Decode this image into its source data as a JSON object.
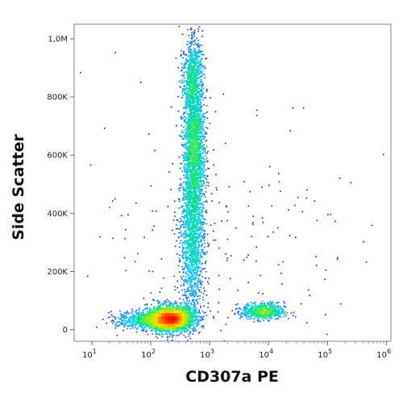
{
  "chart_data": {
    "type": "scatter",
    "subtype": "flow-cytometry-density-dot-plot",
    "xlabel": "CD307a PE",
    "ylabel": "Side Scatter",
    "x_scale": "log",
    "xlim": [
      5,
      1200000
    ],
    "ylim": [
      -40000,
      1050000
    ],
    "x_ticks": [
      {
        "value": 10,
        "base": "10",
        "exp": "1"
      },
      {
        "value": 100,
        "base": "10",
        "exp": "2"
      },
      {
        "value": 1000,
        "base": "10",
        "exp": "3"
      },
      {
        "value": 10000,
        "base": "10",
        "exp": "4"
      },
      {
        "value": 100000,
        "base": "10",
        "exp": "5"
      },
      {
        "value": 1000000,
        "base": "10",
        "exp": "6"
      }
    ],
    "y_ticks": [
      {
        "value": 0,
        "label": "0"
      },
      {
        "value": 200000,
        "label": "200K"
      },
      {
        "value": 400000,
        "label": "400K"
      },
      {
        "value": 600000,
        "label": "600K"
      },
      {
        "value": 800000,
        "label": "800K"
      },
      {
        "value": 1000000,
        "label": "1,0M"
      }
    ],
    "grid": false,
    "legend": "none",
    "color_scale": [
      "#0000d0",
      "#0060ff",
      "#00c8ff",
      "#00e090",
      "#a0f000",
      "#ffe000",
      "#ff8000",
      "#ff0000"
    ],
    "populations": [
      {
        "x_center": 220,
        "y_center": 40000,
        "x_spread_log": 0.2,
        "y_spread": 22000,
        "count": 2600,
        "density": "high"
      },
      {
        "x_center": 100,
        "y_center": 35000,
        "x_spread_log": 0.28,
        "y_spread": 16000,
        "count": 900,
        "density": "medium"
      },
      {
        "x_center": 530,
        "y_center": 620000,
        "x_spread_log": 0.09,
        "y_spread": 150000,
        "count": 2600,
        "density": "high"
      },
      {
        "x_center": 500,
        "y_center": 300000,
        "x_spread_log": 0.1,
        "y_spread": 120000,
        "count": 1300,
        "density": "medium"
      },
      {
        "x_center": 500,
        "y_center": 880000,
        "x_spread_log": 0.08,
        "y_spread": 60000,
        "count": 600,
        "density": "medium"
      },
      {
        "x_center": 8000,
        "y_center": 65000,
        "x_spread_log": 0.18,
        "y_spread": 14000,
        "count": 700,
        "density": "medium"
      },
      {
        "x_center": 1200,
        "y_center": 300000,
        "x_spread_log": 1.2,
        "y_spread": 300000,
        "count": 250,
        "density": "sparse"
      }
    ]
  }
}
